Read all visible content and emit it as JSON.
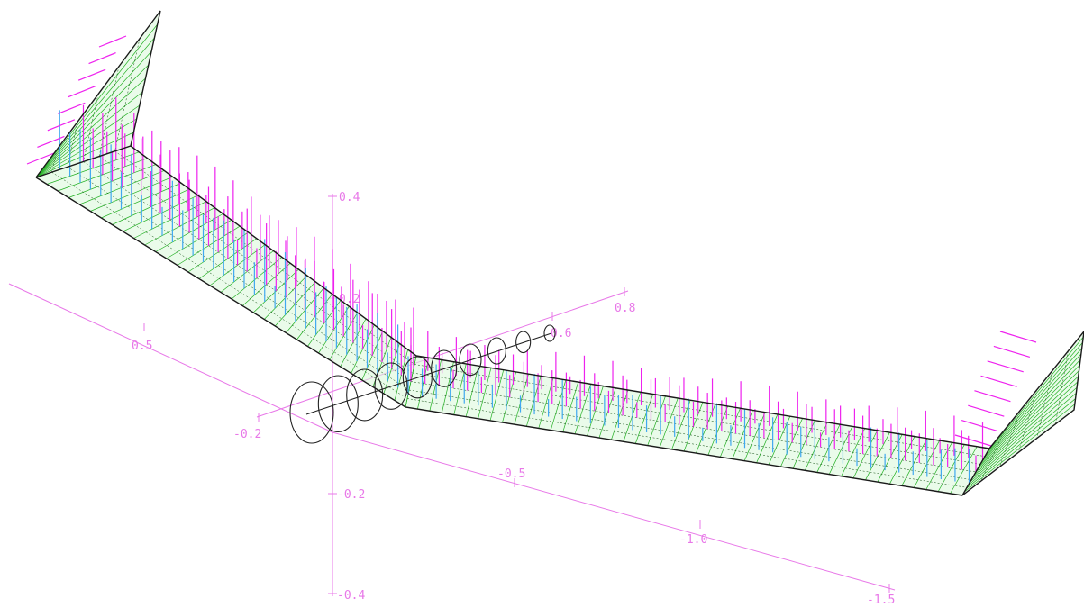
{
  "colors": {
    "background": "#ffffff",
    "axis": "#e878e8",
    "wing_mesh": "#22b022",
    "wing_fill": "#d8f8d8",
    "wing_edge": "#1a1a1a",
    "force_primary": "#ee22ee",
    "force_secondary": "#40a8f0",
    "vortex": "#222222"
  },
  "axes": {
    "vertical_ticks": [
      "0.4",
      "0.2",
      "-0.2",
      "-0.4"
    ],
    "left_axis_ticks": [
      "0.5",
      "-0.2"
    ],
    "right_axis_ticks": [
      "0.6",
      "0.8"
    ],
    "bottom_axis_ticks": [
      "-0.5",
      "-1.0",
      "-1.5"
    ]
  }
}
